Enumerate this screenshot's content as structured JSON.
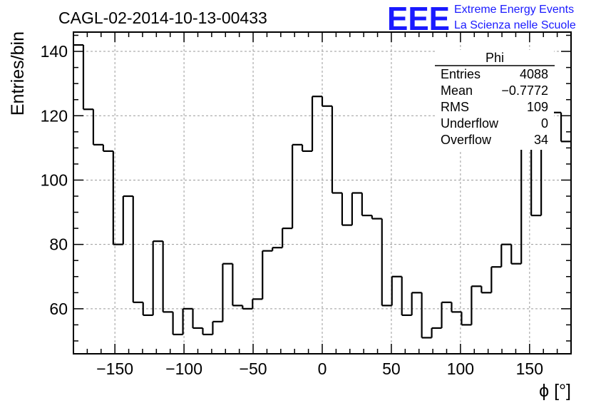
{
  "header": {
    "run_title": "CAGL-02-2014-10-13-00433",
    "logo_mark": "EEE",
    "logo_line1": "Extreme Energy Events",
    "logo_line2": "La Scienza nelle Scuole"
  },
  "stats_box": {
    "title": "Phi",
    "rows": [
      {
        "label": "Entries",
        "value": "4088"
      },
      {
        "label": "Mean",
        "value": "−0.7772"
      },
      {
        "label": "RMS",
        "value": "109"
      },
      {
        "label": "Underflow",
        "value": "0"
      },
      {
        "label": "Overflow",
        "value": "34"
      }
    ]
  },
  "chart_data": {
    "type": "histogram",
    "title": "CAGL-02-2014-10-13-00433",
    "xlabel": "ϕ [°]",
    "ylabel": "Entries/bin",
    "xlim": [
      -180,
      180
    ],
    "ylim": [
      46,
      146
    ],
    "grid": true,
    "bin_width": 7.2,
    "x_ticks": [
      -150,
      -100,
      -50,
      0,
      50,
      100,
      150
    ],
    "x_tick_labels": [
      "−150",
      "−100",
      "−50",
      "0",
      "50",
      "100",
      "150"
    ],
    "y_ticks": [
      60,
      80,
      100,
      120,
      140
    ],
    "y_tick_labels": [
      "60",
      "80",
      "100",
      "120",
      "140"
    ],
    "values": [
      142,
      122,
      111,
      109,
      80,
      95,
      62,
      58,
      81,
      59,
      52,
      60,
      54,
      52,
      56,
      74,
      61,
      60,
      63,
      78,
      79,
      85,
      111,
      109,
      126,
      123,
      96,
      86,
      96,
      89,
      88,
      61,
      70,
      58,
      65,
      51,
      54,
      62,
      59,
      55,
      67,
      65,
      73,
      80,
      74,
      110,
      89,
      111,
      121,
      112
    ]
  },
  "colors": {
    "histogram_line": "#000000",
    "grid": "#9a9a9a",
    "logo": "#1a1aff"
  }
}
